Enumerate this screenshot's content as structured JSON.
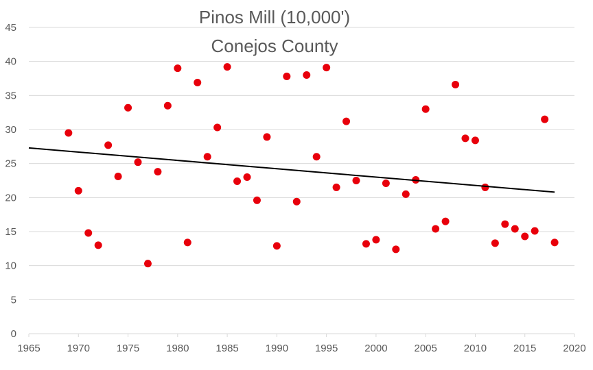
{
  "chart_data": {
    "type": "scatter",
    "title": [
      "Pinos Mill (10,000')",
      "Conejos County"
    ],
    "xlim": [
      1965,
      2020
    ],
    "ylim": [
      0,
      45
    ],
    "xticks": [
      1965,
      1970,
      1975,
      1980,
      1985,
      1990,
      1995,
      2000,
      2005,
      2010,
      2015,
      2020
    ],
    "yticks": [
      0,
      5,
      10,
      15,
      20,
      25,
      30,
      35,
      40,
      45
    ],
    "grid": "horizontal",
    "legend": "none",
    "marker_color": "#e8000b",
    "trendline": {
      "type": "linear",
      "x": [
        1965,
        2018
      ],
      "y": [
        27.3,
        20.8
      ],
      "color": "#000000"
    },
    "points": [
      {
        "x": 1969,
        "y": 29.5
      },
      {
        "x": 1970,
        "y": 21.0
      },
      {
        "x": 1971,
        "y": 14.8
      },
      {
        "x": 1972,
        "y": 13.0
      },
      {
        "x": 1973,
        "y": 27.7
      },
      {
        "x": 1974,
        "y": 23.1
      },
      {
        "x": 1975,
        "y": 33.2
      },
      {
        "x": 1976,
        "y": 25.2
      },
      {
        "x": 1977,
        "y": 10.3
      },
      {
        "x": 1978,
        "y": 23.8
      },
      {
        "x": 1979,
        "y": 33.5
      },
      {
        "x": 1980,
        "y": 39.0
      },
      {
        "x": 1981,
        "y": 13.4
      },
      {
        "x": 1982,
        "y": 36.9
      },
      {
        "x": 1983,
        "y": 26.0
      },
      {
        "x": 1984,
        "y": 30.3
      },
      {
        "x": 1985,
        "y": 39.2
      },
      {
        "x": 1986,
        "y": 22.4
      },
      {
        "x": 1987,
        "y": 23.0
      },
      {
        "x": 1988,
        "y": 19.6
      },
      {
        "x": 1989,
        "y": 28.9
      },
      {
        "x": 1990,
        "y": 12.9
      },
      {
        "x": 1991,
        "y": 37.8
      },
      {
        "x": 1992,
        "y": 19.4
      },
      {
        "x": 1993,
        "y": 38.0
      },
      {
        "x": 1994,
        "y": 26.0
      },
      {
        "x": 1995,
        "y": 39.1
      },
      {
        "x": 1996,
        "y": 21.5
      },
      {
        "x": 1997,
        "y": 31.2
      },
      {
        "x": 1998,
        "y": 22.5
      },
      {
        "x": 1999,
        "y": 13.2
      },
      {
        "x": 2000,
        "y": 13.8
      },
      {
        "x": 2001,
        "y": 22.1
      },
      {
        "x": 2002,
        "y": 12.4
      },
      {
        "x": 2003,
        "y": 20.5
      },
      {
        "x": 2004,
        "y": 22.6
      },
      {
        "x": 2005,
        "y": 33.0
      },
      {
        "x": 2006,
        "y": 15.4
      },
      {
        "x": 2007,
        "y": 16.5
      },
      {
        "x": 2008,
        "y": 36.6
      },
      {
        "x": 2009,
        "y": 28.7
      },
      {
        "x": 2010,
        "y": 28.4
      },
      {
        "x": 2011,
        "y": 21.5
      },
      {
        "x": 2012,
        "y": 13.3
      },
      {
        "x": 2013,
        "y": 16.1
      },
      {
        "x": 2014,
        "y": 15.4
      },
      {
        "x": 2015,
        "y": 14.3
      },
      {
        "x": 2016,
        "y": 15.1
      },
      {
        "x": 2017,
        "y": 31.5
      },
      {
        "x": 2018,
        "y": 13.4
      }
    ]
  }
}
